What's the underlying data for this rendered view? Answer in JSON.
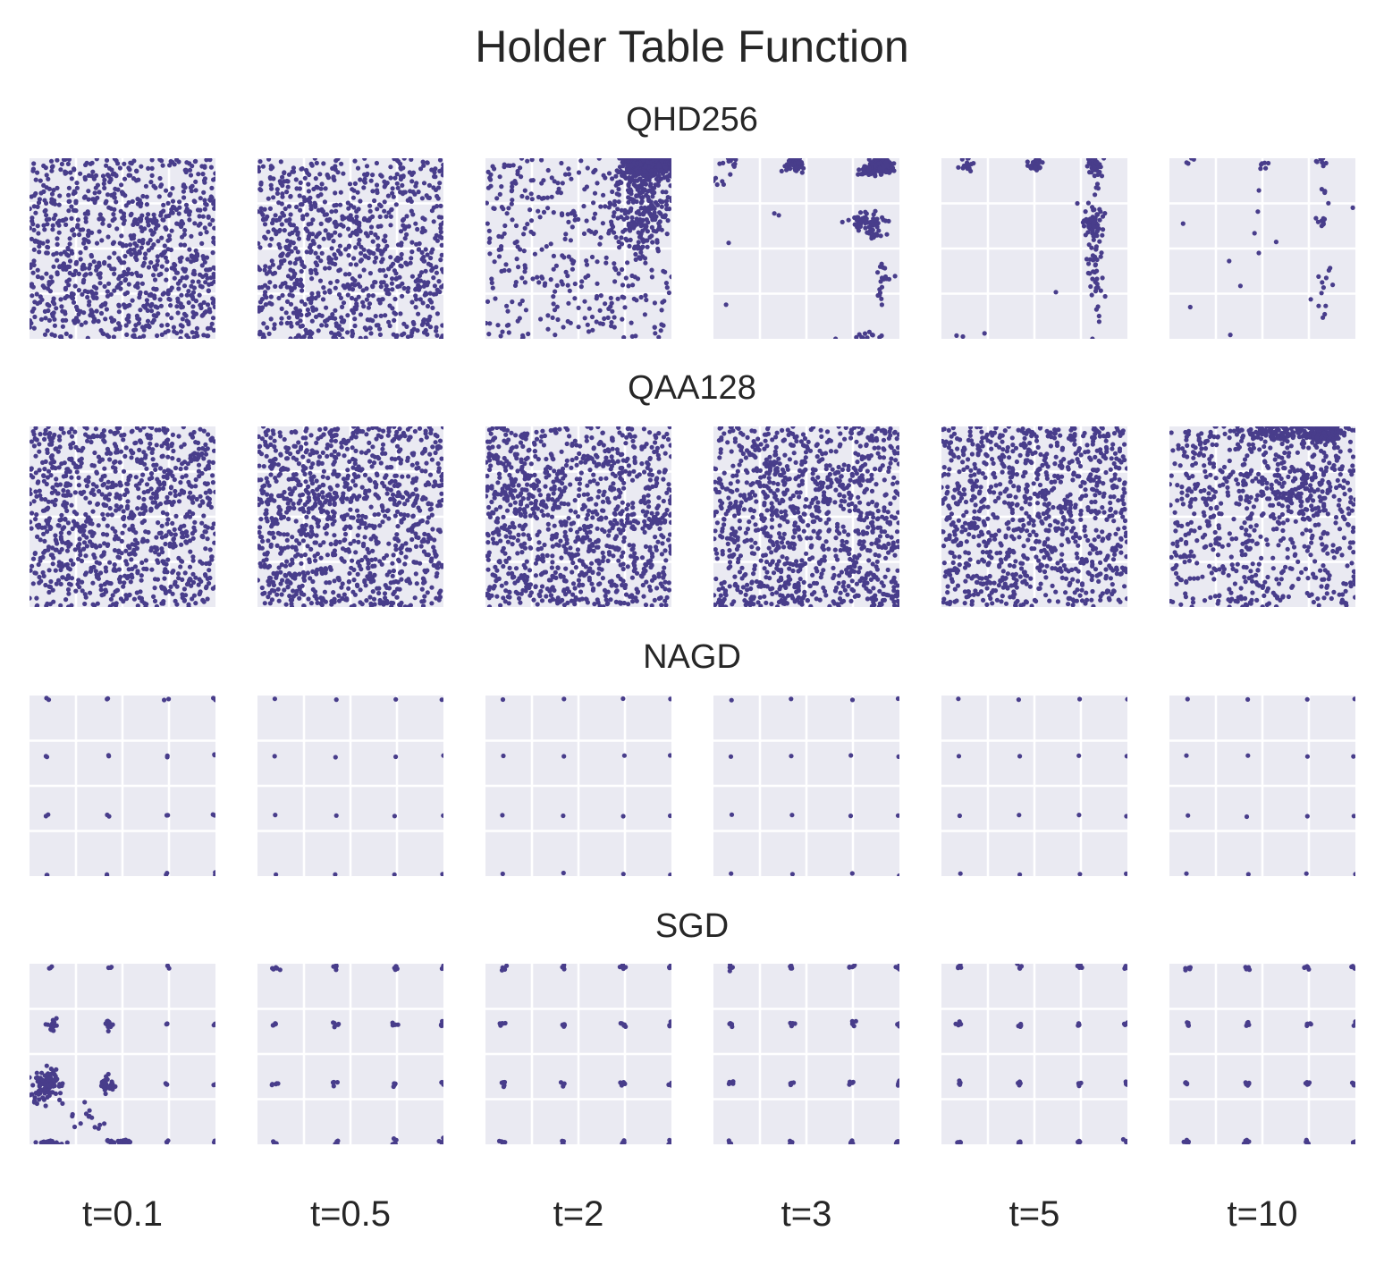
{
  "figure": {
    "title": "Holder Table Function"
  },
  "chart_data": {
    "type": "scatter",
    "title": "Holder Table Function",
    "point_color": "#483d8b",
    "panel_background": "#eaeaf2",
    "grid": true,
    "grid_color": "#ffffff",
    "axes": {
      "xlim": [
        -10,
        10
      ],
      "ylim": [
        -10,
        10
      ],
      "ticks_visible": false
    },
    "columns": [
      "t=0.1",
      "t=0.5",
      "t=2",
      "t=3",
      "t=5",
      "t=10"
    ],
    "rows": [
      {
        "name": "QHD256",
        "panels": [
          {
            "column": "t=0.1",
            "distribution": "uniform",
            "n_points": 950
          },
          {
            "column": "t=0.5",
            "distribution": "uniform",
            "n_points": 900
          },
          {
            "column": "t=2",
            "distribution": "mixed",
            "n_uniform": 380,
            "clusters": [
              [
                7.5,
                9.2,
                1.4,
                0.7,
                420
              ],
              [
                6.5,
                4.5,
                1.8,
                2.5,
                200
              ]
            ]
          },
          {
            "column": "t=3",
            "distribution": "clustered",
            "n_uniform": 6,
            "clusters": [
              [
                8.1,
                9.2,
                0.5,
                0.5,
                260
              ],
              [
                6.6,
                8.6,
                0.5,
                0.3,
                40
              ],
              [
                -1.3,
                9.4,
                0.6,
                0.5,
                45
              ],
              [
                -8.0,
                9.5,
                0.4,
                0.4,
                12
              ],
              [
                -9.3,
                8.0,
                0.3,
                0.5,
                6
              ],
              [
                6.5,
                2.9,
                1.0,
                0.6,
                60
              ],
              [
                7.3,
                1.6,
                0.3,
                0.3,
                12
              ],
              [
                8.0,
                -4.0,
                0.4,
                1.4,
                15
              ],
              [
                6.0,
                -9.8,
                1.5,
                0.2,
                12
              ],
              [
                -3.0,
                3.7,
                0.2,
                0.2,
                2
              ]
            ]
          },
          {
            "column": "t=5",
            "distribution": "clustered",
            "n_uniform": 3,
            "clusters": [
              [
                6.5,
                9.3,
                0.4,
                0.5,
                45
              ],
              [
                0,
                9.3,
                0.4,
                0.4,
                25
              ],
              [
                -7.3,
                9.5,
                0.4,
                0.4,
                15
              ],
              [
                6.3,
                2.9,
                0.5,
                0.6,
                55
              ],
              [
                6.5,
                -2.0,
                0.4,
                4.2,
                55
              ],
              [
                -8.0,
                -9.8,
                0.2,
                0.1,
                2
              ]
            ]
          },
          {
            "column": "t=10",
            "distribution": "clustered",
            "n_uniform": 14,
            "clusters": [
              [
                6.3,
                9.5,
                0.3,
                0.4,
                10
              ],
              [
                0,
                9.3,
                0.3,
                0.3,
                6
              ],
              [
                -7.6,
                9.6,
                0.3,
                0.3,
                4
              ],
              [
                6.5,
                2.9,
                0.3,
                0.3,
                10
              ],
              [
                6.5,
                6.3,
                0.3,
                0.2,
                4
              ],
              [
                6.7,
                -3.4,
                0.5,
                1.0,
                8
              ],
              [
                6.8,
                -7.3,
                0.2,
                0.4,
                3
              ]
            ]
          }
        ]
      },
      {
        "name": "QAA128",
        "panels": [
          {
            "column": "t=0.1",
            "distribution": "uniform",
            "n_points": 1000
          },
          {
            "column": "t=0.5",
            "distribution": "uniform",
            "n_points": 1050
          },
          {
            "column": "t=2",
            "distribution": "uniform",
            "n_points": 1050
          },
          {
            "column": "t=3",
            "distribution": "uniform",
            "n_points": 1050
          },
          {
            "column": "t=5",
            "distribution": "uniform",
            "n_points": 1000
          },
          {
            "column": "t=10",
            "distribution": "mixed",
            "n_uniform": 650,
            "clusters": [
              [
                1.5,
                9.3,
                3.0,
                0.6,
                120
              ],
              [
                6.5,
                9.2,
                1.2,
                0.6,
                130
              ],
              [
                4.0,
                2.8,
                2.5,
                1.5,
                120
              ]
            ]
          }
        ]
      },
      {
        "name": "NAGD",
        "panels": [
          {
            "column": "t=0.1",
            "distribution": "grid_minima",
            "spread": 0.1,
            "pts_per_site": 2
          },
          {
            "column": "t=0.5",
            "distribution": "grid_minima",
            "spread": 0.06,
            "pts_per_site": 1
          },
          {
            "column": "t=2",
            "distribution": "grid_minima",
            "spread": 0.06,
            "pts_per_site": 1
          },
          {
            "column": "t=3",
            "distribution": "grid_minima",
            "spread": 0.06,
            "pts_per_site": 1
          },
          {
            "column": "t=5",
            "distribution": "grid_minima",
            "spread": 0.06,
            "pts_per_site": 1
          },
          {
            "column": "t=10",
            "distribution": "grid_minima",
            "spread": 0.06,
            "pts_per_site": 1
          }
        ]
      },
      {
        "name": "SGD",
        "panels": [
          {
            "column": "t=0.1",
            "distribution": "scattered_minima"
          },
          {
            "column": "t=0.5",
            "distribution": "grid_minima",
            "spread": 0.18,
            "pts_per_site": 5
          },
          {
            "column": "t=2",
            "distribution": "grid_minima",
            "spread": 0.16,
            "pts_per_site": 5
          },
          {
            "column": "t=3",
            "distribution": "grid_minima",
            "spread": 0.16,
            "pts_per_site": 5
          },
          {
            "column": "t=5",
            "distribution": "grid_minima",
            "spread": 0.14,
            "pts_per_site": 5
          },
          {
            "column": "t=10",
            "distribution": "grid_minima",
            "spread": 0.14,
            "pts_per_site": 5
          }
        ]
      }
    ],
    "minima_x": [
      -8.1,
      -1.6,
      4.8,
      9.9
    ],
    "minima_y": [
      -9.8,
      -3.3,
      3.3,
      9.6
    ]
  }
}
